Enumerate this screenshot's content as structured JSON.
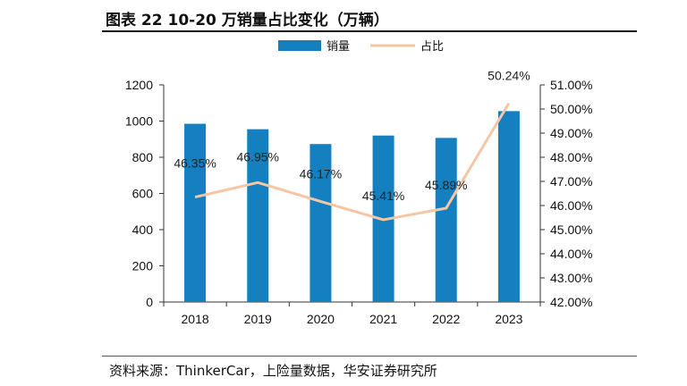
{
  "figure": {
    "title": "图表 22 10-20 万销量占比变化（万辆）",
    "source": "资料来源：ThinkerCar，上险量数据，华安证券研究所"
  },
  "chart_data": {
    "type": "bar",
    "categories": [
      "2018",
      "2019",
      "2020",
      "2021",
      "2022",
      "2023"
    ],
    "series": [
      {
        "name": "销量",
        "kind": "bar",
        "axis": "left",
        "color": "#1480C0",
        "values": [
          985,
          955,
          873,
          920,
          907,
          1055
        ]
      },
      {
        "name": "占比",
        "kind": "line",
        "axis": "right",
        "color": "#F6C6A4",
        "values": [
          46.35,
          46.95,
          46.17,
          45.41,
          45.89,
          50.24
        ],
        "labels": [
          "46.35%",
          "46.95%",
          "46.17%",
          "45.41%",
          "45.89%",
          "50.24%"
        ]
      }
    ],
    "y_left": {
      "min": 0,
      "max": 1200,
      "ticks": [
        "0",
        "200",
        "400",
        "600",
        "800",
        "1000",
        "1200"
      ]
    },
    "y_right": {
      "min": 42,
      "max": 51,
      "ticks": [
        "42.00%",
        "43.00%",
        "44.00%",
        "45.00%",
        "46.00%",
        "47.00%",
        "48.00%",
        "49.00%",
        "50.00%",
        "51.00%"
      ]
    },
    "legend": {
      "position": "top",
      "items": [
        "销量",
        "占比"
      ]
    },
    "grid": false
  }
}
